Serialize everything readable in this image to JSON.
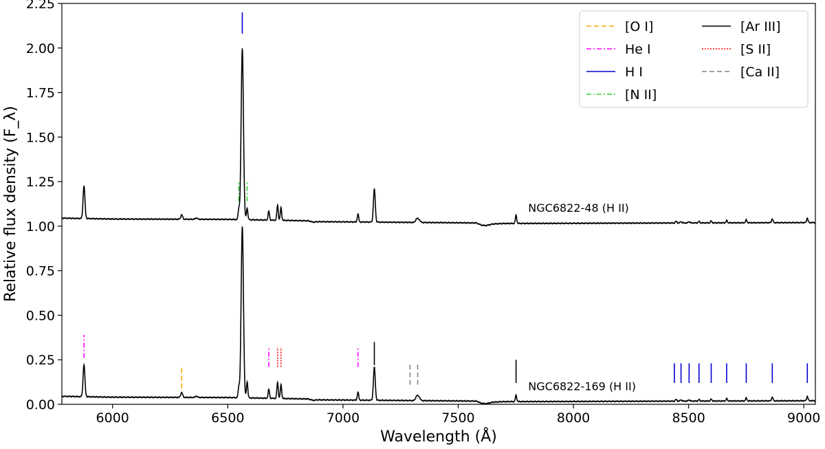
{
  "chart_data": {
    "type": "line",
    "title": "",
    "xlabel": "Wavelength (Å)",
    "ylabel": "Relative flux density (F_λ)",
    "xlim": [
      5780,
      9050
    ],
    "ylim": [
      0.0,
      2.25
    ],
    "x_ticks": [
      "6000",
      "6500",
      "7000",
      "7500",
      "8000",
      "8500",
      "9000"
    ],
    "x_tick_values": [
      6000,
      6500,
      7000,
      7500,
      8000,
      8500,
      9000
    ],
    "y_ticks": [
      "0.00",
      "0.25",
      "0.50",
      "0.75",
      "1.00",
      "1.25",
      "1.50",
      "1.75",
      "2.00",
      "2.25"
    ],
    "y_tick_values": [
      0.0,
      0.25,
      0.5,
      0.75,
      1.0,
      1.25,
      1.5,
      1.75,
      2.0,
      2.25
    ],
    "grid": false,
    "legend_position": "top-right",
    "series": [
      {
        "name": "NGC6822-48 (H II)",
        "offset": 1.0,
        "continuum": [
          [
            5780,
            0.045
          ],
          [
            6000,
            0.04
          ],
          [
            6500,
            0.038
          ],
          [
            6850,
            0.03
          ],
          [
            6870,
            0.022
          ],
          [
            6890,
            0.025
          ],
          [
            7000,
            0.024
          ],
          [
            7200,
            0.022
          ],
          [
            7400,
            0.02
          ],
          [
            7580,
            0.018
          ],
          [
            7600,
            0.006
          ],
          [
            7620,
            0.003
          ],
          [
            7650,
            0.012
          ],
          [
            7700,
            0.015
          ],
          [
            8000,
            0.016
          ],
          [
            8500,
            0.018
          ],
          [
            9050,
            0.02
          ]
        ],
        "peaks": [
          [
            5876,
            0.185,
            4
          ],
          [
            6300,
            0.025,
            4
          ],
          [
            6364,
            0.008,
            4
          ],
          [
            6548,
            0.06,
            3
          ],
          [
            6563,
            0.96,
            5
          ],
          [
            6584,
            0.065,
            3
          ],
          [
            6678,
            0.05,
            3
          ],
          [
            6716,
            0.085,
            3
          ],
          [
            6731,
            0.07,
            3
          ],
          [
            7065,
            0.045,
            3
          ],
          [
            7136,
            0.185,
            4
          ],
          [
            7320,
            0.02,
            5
          ],
          [
            7330,
            0.015,
            5
          ],
          [
            7751,
            0.045,
            3
          ],
          [
            8446,
            0.01,
            3
          ],
          [
            8467,
            0.008,
            3
          ],
          [
            8502,
            0.008,
            3
          ],
          [
            8545,
            0.008,
            3
          ],
          [
            8598,
            0.01,
            3
          ],
          [
            8665,
            0.013,
            3
          ],
          [
            8750,
            0.016,
            3
          ],
          [
            8863,
            0.022,
            3
          ],
          [
            9015,
            0.025,
            3
          ]
        ]
      },
      {
        "name": "NGC6822-169 (H II)",
        "offset": 0.0,
        "continuum": [
          [
            5780,
            0.045
          ],
          [
            6000,
            0.04
          ],
          [
            6500,
            0.038
          ],
          [
            6850,
            0.03
          ],
          [
            6870,
            0.022
          ],
          [
            6890,
            0.025
          ],
          [
            7000,
            0.024
          ],
          [
            7200,
            0.022
          ],
          [
            7400,
            0.02
          ],
          [
            7580,
            0.018
          ],
          [
            7600,
            0.006
          ],
          [
            7620,
            0.003
          ],
          [
            7650,
            0.012
          ],
          [
            7700,
            0.015
          ],
          [
            8000,
            0.016
          ],
          [
            8500,
            0.018
          ],
          [
            9050,
            0.02
          ]
        ],
        "peaks": [
          [
            5876,
            0.18,
            4
          ],
          [
            6300,
            0.028,
            4
          ],
          [
            6364,
            0.008,
            4
          ],
          [
            6548,
            0.06,
            3
          ],
          [
            6563,
            0.96,
            5
          ],
          [
            6584,
            0.09,
            3
          ],
          [
            6678,
            0.05,
            3
          ],
          [
            6716,
            0.09,
            3
          ],
          [
            6731,
            0.075,
            3
          ],
          [
            7065,
            0.045,
            3
          ],
          [
            7136,
            0.185,
            4
          ],
          [
            7320,
            0.025,
            5
          ],
          [
            7330,
            0.02,
            5
          ],
          [
            7751,
            0.035,
            3
          ],
          [
            8446,
            0.01,
            3
          ],
          [
            8467,
            0.008,
            3
          ],
          [
            8502,
            0.008,
            3
          ],
          [
            8545,
            0.008,
            3
          ],
          [
            8598,
            0.01,
            3
          ],
          [
            8665,
            0.013,
            3
          ],
          [
            8750,
            0.016,
            3
          ],
          [
            8863,
            0.022,
            3
          ],
          [
            9015,
            0.025,
            3
          ]
        ]
      }
    ],
    "annotations": [
      {
        "text": "NGC6822-48 (H II)",
        "x": 7750,
        "y": 1.08
      },
      {
        "text": "NGC6822-169 (H II)",
        "x": 7750,
        "y": 0.08
      }
    ],
    "legend": [
      {
        "label": "[O I]",
        "color": "#ffa500",
        "dash": "dashed"
      },
      {
        "label": "He I",
        "color": "#ff00ff",
        "dash": "dashdot"
      },
      {
        "label": "H I",
        "color": "#0000cd",
        "dash": "solid"
      },
      {
        "label": "[N II]",
        "color": "#32cd32",
        "dash": "dashdot"
      },
      {
        "label": "[Ar III]",
        "color": "#000000",
        "dash": "solid"
      },
      {
        "label": "[S II]",
        "color": "#ff0000",
        "dash": "dotted"
      },
      {
        "label": "[Ca II]",
        "color": "#808080",
        "dash": "dashed"
      }
    ],
    "line_markers": [
      {
        "species": "H I",
        "color": "#0000cd",
        "dash": "solid",
        "wavelengths": [
          6563
        ],
        "y0": 2.08,
        "y1": 2.2
      },
      {
        "species": "[N II]",
        "color": "#32cd32",
        "dash": "dashdot",
        "wavelengths": [
          6548,
          6584
        ],
        "y0": 1.14,
        "y1": 1.25
      },
      {
        "species": "He I",
        "color": "#ff00ff",
        "dash": "dashdot",
        "wavelengths": [
          5876
        ],
        "y0": 0.26,
        "y1": 0.39
      },
      {
        "species": "He I",
        "color": "#ff00ff",
        "dash": "dashdot",
        "wavelengths": [
          6678,
          7065
        ],
        "y0": 0.21,
        "y1": 0.32
      },
      {
        "species": "[O I]",
        "color": "#ffa500",
        "dash": "dashed",
        "wavelengths": [
          6300
        ],
        "y0": 0.09,
        "y1": 0.22
      },
      {
        "species": "[S II]",
        "color": "#ff0000",
        "dash": "dotted",
        "wavelengths": [
          6716,
          6731
        ],
        "y0": 0.21,
        "y1": 0.32
      },
      {
        "species": "[Ar III]",
        "color": "#000000",
        "dash": "solid",
        "wavelengths": [
          7136
        ],
        "y0": 0.22,
        "y1": 0.35
      },
      {
        "species": "[Ar III]",
        "color": "#000000",
        "dash": "solid",
        "wavelengths": [
          7751
        ],
        "y0": 0.12,
        "y1": 0.25
      },
      {
        "species": "[Ca II]",
        "color": "#808080",
        "dash": "dashed",
        "wavelengths": [
          7291,
          7324
        ],
        "y0": 0.11,
        "y1": 0.23
      },
      {
        "species": "H I",
        "color": "#0000cd",
        "dash": "solid",
        "wavelengths": [
          8438,
          8467,
          8502,
          8545,
          8598,
          8665,
          8750,
          8863,
          9015
        ],
        "y0": 0.12,
        "y1": 0.23
      }
    ]
  }
}
